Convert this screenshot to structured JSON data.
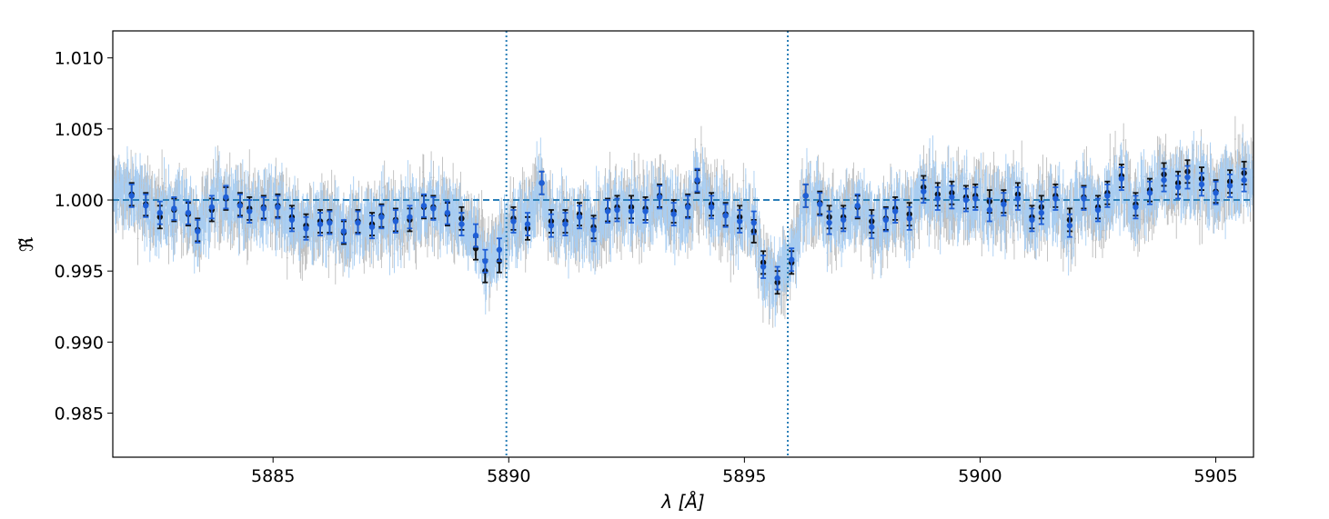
{
  "chart_data": {
    "type": "scatter",
    "title": "",
    "xlabel": "λ [Å]",
    "ylabel": "ℜ̃",
    "xlim": [
      5881.6,
      5905.8
    ],
    "ylim": [
      0.9819,
      1.0119
    ],
    "xticks": [
      5885,
      5890,
      5895,
      5900,
      5905
    ],
    "xtick_labels": [
      "5885",
      "5890",
      "5895",
      "5900",
      "5905"
    ],
    "yticks": [
      0.985,
      0.99,
      0.995,
      1.0,
      1.005,
      1.01
    ],
    "ytick_labels": [
      "0.985",
      "0.990",
      "0.995",
      "1.000",
      "1.005",
      "1.010"
    ],
    "reference_line": {
      "y": 1.0,
      "style": "dashed",
      "color": "#2a7fb8"
    },
    "vertical_lines": [
      {
        "x": 5889.95,
        "style": "dotted",
        "color": "#2a7fb8"
      },
      {
        "x": 5895.92,
        "style": "dotted",
        "color": "#2a7fb8"
      }
    ],
    "grid": false,
    "legend": "none",
    "colors": {
      "black_series": "#111111",
      "blue_series": "#1f5fd6",
      "raw_light_blue": "#a7cdf2",
      "raw_gray": "#bdbdbd"
    },
    "series": [
      {
        "marker": "black",
        "x": [
          5882.0,
          5882.3,
          5882.6,
          5882.9,
          5883.2,
          5883.4,
          5883.7,
          5884.0,
          5884.3,
          5884.5,
          5884.8,
          5885.1,
          5885.4,
          5885.7,
          5886.0,
          5886.2,
          5886.5,
          5886.8,
          5887.1,
          5887.3,
          5887.6,
          5887.9,
          5888.2,
          5888.4,
          5888.7,
          5889.0,
          5889.3,
          5889.5,
          5889.8,
          5890.1,
          5890.4,
          5890.7,
          5890.9,
          5891.2,
          5891.5,
          5891.8,
          5892.1,
          5892.3,
          5892.6,
          5892.9,
          5893.2,
          5893.5,
          5893.8,
          5894.0,
          5894.3,
          5894.6,
          5894.9,
          5895.2,
          5895.4,
          5895.7,
          5896.0,
          5896.3,
          5896.6,
          5896.8,
          5897.1,
          5897.4,
          5897.7,
          5898.0,
          5898.2,
          5898.5,
          5898.8,
          5899.1,
          5899.4,
          5899.7,
          5899.9,
          5900.2,
          5900.5,
          5900.8,
          5901.1,
          5901.3,
          5901.6,
          5901.9,
          5902.2,
          5902.5,
          5902.7,
          5903.0,
          5903.3,
          5903.6,
          5903.9,
          5904.2,
          5904.4,
          5904.7,
          5905.0,
          5905.3,
          5905.6
        ],
        "y": [
          1.0004,
          0.9997,
          0.9988,
          0.9993,
          0.999,
          0.9979,
          0.9993,
          1.0001,
          0.9997,
          0.9994,
          0.9995,
          0.9996,
          0.9988,
          0.9982,
          0.9985,
          0.9985,
          0.9977,
          0.9985,
          0.9983,
          0.9989,
          0.9986,
          0.9986,
          0.9995,
          0.9995,
          0.999,
          0.9987,
          0.9966,
          0.995,
          0.9957,
          0.9987,
          0.998,
          1.0012,
          0.9985,
          0.9985,
          0.999,
          0.9981,
          0.9993,
          0.9995,
          0.9995,
          0.9994,
          1.0003,
          0.9992,
          0.9996,
          1.0013,
          0.9997,
          0.999,
          0.9988,
          0.9978,
          0.9956,
          0.9942,
          0.9956,
          1.0003,
          0.9998,
          0.9988,
          0.9988,
          0.9995,
          0.9985,
          0.9987,
          0.9994,
          0.999,
          1.0009,
          1.0004,
          1.0005,
          1.0002,
          1.0003,
          0.9999,
          0.9999,
          1.0004,
          0.9988,
          0.9995,
          1.0003,
          0.9986,
          1.0002,
          0.9995,
          1.0005,
          1.0017,
          0.9997,
          1.0007,
          1.0018,
          1.0012,
          1.002,
          1.0015,
          1.0006,
          1.0013,
          1.0019
        ]
      },
      {
        "marker": "blue",
        "x": [
          5882.0,
          5882.3,
          5882.6,
          5882.9,
          5883.2,
          5883.4,
          5883.7,
          5884.0,
          5884.3,
          5884.5,
          5884.8,
          5885.1,
          5885.4,
          5885.7,
          5886.0,
          5886.2,
          5886.5,
          5886.8,
          5887.1,
          5887.3,
          5887.6,
          5887.9,
          5888.2,
          5888.4,
          5888.7,
          5889.0,
          5889.3,
          5889.5,
          5889.8,
          5890.1,
          5890.4,
          5890.7,
          5890.9,
          5891.2,
          5891.5,
          5891.8,
          5892.1,
          5892.3,
          5892.6,
          5892.9,
          5893.2,
          5893.5,
          5893.8,
          5894.0,
          5894.3,
          5894.6,
          5894.9,
          5895.2,
          5895.4,
          5895.7,
          5896.0,
          5896.3,
          5896.6,
          5896.8,
          5897.1,
          5897.4,
          5897.7,
          5898.0,
          5898.2,
          5898.5,
          5898.8,
          5899.1,
          5899.4,
          5899.7,
          5899.9,
          5900.2,
          5900.5,
          5900.8,
          5901.1,
          5901.3,
          5901.6,
          5901.9,
          5902.2,
          5902.5,
          5902.7,
          5903.0,
          5903.3,
          5903.6,
          5903.9,
          5904.2,
          5904.4,
          5904.7,
          5905.0,
          5905.3,
          5905.6
        ],
        "y": [
          1.0003,
          0.9996,
          0.9991,
          0.9994,
          0.9991,
          0.9978,
          0.9995,
          1.0002,
          0.9996,
          0.9992,
          0.9994,
          0.9995,
          0.9986,
          0.998,
          0.9983,
          0.9984,
          0.9978,
          0.9984,
          0.9981,
          0.9988,
          0.9985,
          0.9988,
          0.9996,
          0.9994,
          0.9991,
          0.9983,
          0.9975,
          0.9957,
          0.9965,
          0.9985,
          0.9983,
          1.0012,
          0.9982,
          0.9983,
          0.9988,
          0.9979,
          0.9992,
          0.9993,
          0.9992,
          0.9992,
          1.0002,
          0.999,
          0.9995,
          1.0014,
          0.9995,
          0.9989,
          0.9985,
          0.9984,
          0.9953,
          0.9945,
          0.9958,
          1.0003,
          0.9997,
          0.9984,
          0.9986,
          0.9996,
          0.9981,
          0.9986,
          0.9992,
          0.9987,
          1.0006,
          1.0001,
          1.0002,
          1.0,
          1.0001,
          0.9993,
          0.9997,
          1.0001,
          0.9986,
          0.9991,
          1.0001,
          0.9982,
          1.0001,
          0.9993,
          1.0003,
          1.0015,
          0.9995,
          1.0005,
          1.0014,
          1.0009,
          1.0016,
          1.0011,
          1.0005,
          1.001,
          1.0014
        ]
      }
    ],
    "error": 0.0008
  }
}
